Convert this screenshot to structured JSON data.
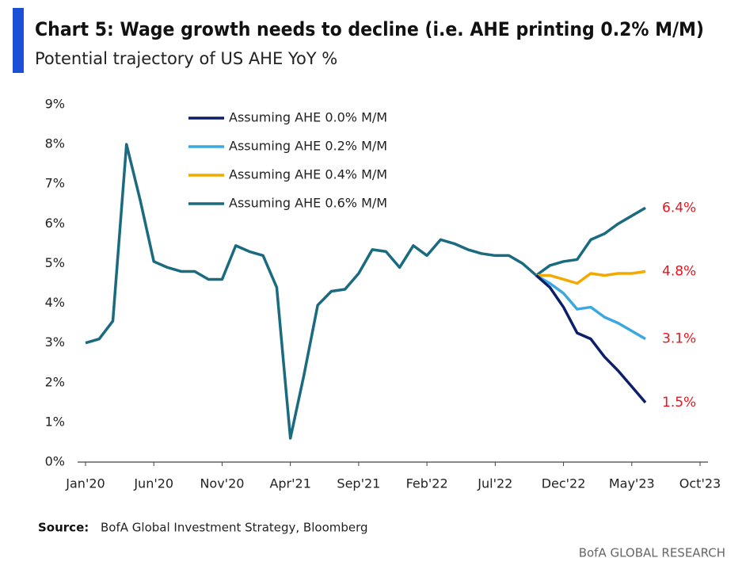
{
  "chart_data": {
    "type": "line",
    "title": "Chart 5: Wage growth needs to decline (i.e. AHE printing 0.2% M/M)",
    "subtitle": "Potential trajectory of US AHE YoY %",
    "categories": [
      "Jan'20",
      null,
      null,
      null,
      null,
      "Jun'20",
      null,
      null,
      null,
      null,
      "Nov'20",
      null,
      null,
      null,
      null,
      "Apr'21",
      null,
      null,
      null,
      null,
      "Sep'21",
      null,
      null,
      null,
      null,
      "Feb'22",
      null,
      null,
      null,
      null,
      "Jul'22",
      null,
      null,
      null,
      null,
      "Dec'22",
      null,
      null,
      null,
      null,
      "May'23",
      null,
      null,
      null,
      null,
      "Oct'23"
    ],
    "ylim": [
      0,
      9
    ],
    "yticks": [
      {
        "value": 0,
        "label": "0%"
      },
      {
        "value": 1,
        "label": "1%"
      },
      {
        "value": 2,
        "label": "2%"
      },
      {
        "value": 3,
        "label": "3%"
      },
      {
        "value": 4,
        "label": "4%"
      },
      {
        "value": 5,
        "label": "5%"
      },
      {
        "value": 6,
        "label": "6%"
      },
      {
        "value": 7,
        "label": "7%"
      },
      {
        "value": 8,
        "label": "8%"
      },
      {
        "value": 9,
        "label": "9%"
      }
    ],
    "series": [
      {
        "name": "Assuming AHE 0.0% M/M",
        "color": "#0d1f6b",
        "values": [
          null,
          null,
          null,
          null,
          null,
          null,
          null,
          null,
          null,
          null,
          null,
          null,
          null,
          null,
          null,
          null,
          null,
          null,
          null,
          null,
          null,
          null,
          null,
          null,
          null,
          null,
          null,
          null,
          null,
          null,
          null,
          null,
          null,
          4.7,
          4.4,
          3.9,
          3.25,
          3.1,
          2.65,
          2.3,
          1.9,
          1.5,
          null,
          null,
          null,
          null
        ],
        "value_labels": [
          null,
          null,
          null,
          null,
          null,
          null,
          null,
          null,
          null,
          null,
          null,
          null,
          null,
          null,
          null,
          null,
          null,
          null,
          null,
          null,
          null,
          null,
          null,
          null,
          null,
          null,
          null,
          null,
          null,
          null,
          null,
          null,
          null,
          null,
          null,
          null,
          null,
          null,
          null,
          null,
          null,
          "1.5%",
          null,
          null,
          null,
          null
        ]
      },
      {
        "name": "Assuming AHE 0.2% M/M",
        "color": "#3ba9e0",
        "values": [
          null,
          null,
          null,
          null,
          null,
          null,
          null,
          null,
          null,
          null,
          null,
          null,
          null,
          null,
          null,
          null,
          null,
          null,
          null,
          null,
          null,
          null,
          null,
          null,
          null,
          null,
          null,
          null,
          null,
          null,
          null,
          null,
          null,
          4.7,
          4.5,
          4.25,
          3.85,
          3.9,
          3.65,
          3.5,
          3.3,
          3.1,
          null,
          null,
          null,
          null
        ],
        "value_labels": [
          null,
          null,
          null,
          null,
          null,
          null,
          null,
          null,
          null,
          null,
          null,
          null,
          null,
          null,
          null,
          null,
          null,
          null,
          null,
          null,
          null,
          null,
          null,
          null,
          null,
          null,
          null,
          null,
          null,
          null,
          null,
          null,
          null,
          null,
          null,
          null,
          null,
          null,
          null,
          null,
          null,
          "3.1%",
          null,
          null,
          null,
          null
        ]
      },
      {
        "name": "Assuming AHE 0.4% M/M",
        "color": "#f2a900",
        "values": [
          null,
          null,
          null,
          null,
          null,
          null,
          null,
          null,
          null,
          null,
          null,
          null,
          null,
          null,
          null,
          null,
          null,
          null,
          null,
          null,
          null,
          null,
          null,
          null,
          null,
          null,
          null,
          null,
          null,
          null,
          null,
          null,
          null,
          4.7,
          4.7,
          4.6,
          4.5,
          4.75,
          4.7,
          4.75,
          4.75,
          4.8,
          null,
          null,
          null,
          null
        ],
        "value_labels": [
          null,
          null,
          null,
          null,
          null,
          null,
          null,
          null,
          null,
          null,
          null,
          null,
          null,
          null,
          null,
          null,
          null,
          null,
          null,
          null,
          null,
          null,
          null,
          null,
          null,
          null,
          null,
          null,
          null,
          null,
          null,
          null,
          null,
          null,
          null,
          null,
          null,
          null,
          null,
          null,
          null,
          "4.8%",
          null,
          null,
          null,
          null
        ]
      },
      {
        "name": "Assuming AHE 0.6% M/M",
        "color": "#1a6b7f",
        "values": [
          3.0,
          3.1,
          3.55,
          8.0,
          6.6,
          5.05,
          4.9,
          4.8,
          4.8,
          4.6,
          4.6,
          5.45,
          5.3,
          5.2,
          4.4,
          0.6,
          2.2,
          3.95,
          4.3,
          4.35,
          4.75,
          5.35,
          5.3,
          4.9,
          5.45,
          5.2,
          5.6,
          5.5,
          5.35,
          5.25,
          5.2,
          5.2,
          5.0,
          4.7,
          4.95,
          5.05,
          5.1,
          5.6,
          5.75,
          6.0,
          6.2,
          6.4,
          null,
          null,
          null,
          null
        ],
        "value_labels": [
          null,
          null,
          null,
          null,
          null,
          null,
          null,
          null,
          null,
          null,
          null,
          null,
          null,
          null,
          null,
          null,
          null,
          null,
          null,
          null,
          null,
          null,
          null,
          null,
          null,
          null,
          null,
          null,
          null,
          null,
          null,
          null,
          null,
          null,
          null,
          null,
          null,
          null,
          null,
          null,
          null,
          "6.4%",
          null,
          null,
          null,
          null
        ]
      }
    ],
    "label_color": "#e8141c",
    "source_label": "Source:",
    "source": "BofA Global Investment Strategy, Bloomberg",
    "footer": "BofA GLOBAL RESEARCH"
  }
}
